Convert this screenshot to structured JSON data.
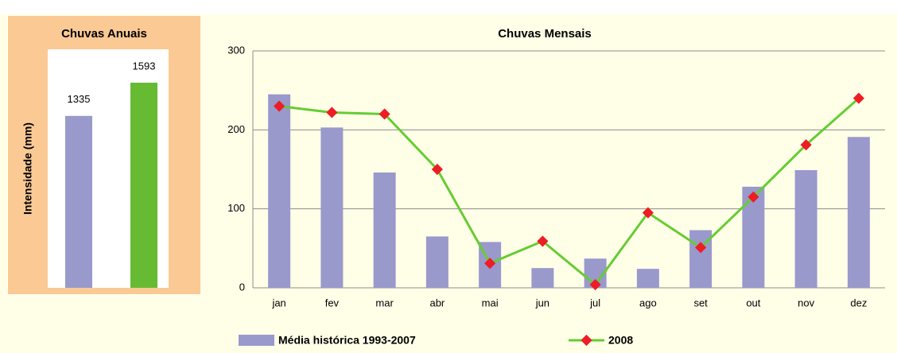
{
  "chart_data": [
    {
      "type": "bar",
      "title": "Chuvas Anuais",
      "y_label": "Intensidade (mm)",
      "values": [
        1335,
        1593
      ],
      "colors": [
        "#9999cc",
        "#66bb33"
      ]
    },
    {
      "type": "bar_line",
      "title": "Chuvas Mensais",
      "categories": [
        "jan",
        "fev",
        "mar",
        "abr",
        "mai",
        "jun",
        "jul",
        "ago",
        "set",
        "out",
        "nov",
        "dez"
      ],
      "ylim": [
        0,
        300
      ],
      "yticks": [
        0,
        100,
        200,
        300
      ],
      "grid": true,
      "legend": "bottom",
      "series": [
        {
          "name": "Média histórica 1993-2007",
          "type": "bar",
          "color": "#9999cc",
          "values": [
            245,
            203,
            146,
            65,
            58,
            25,
            37,
            24,
            73,
            128,
            149,
            191
          ]
        },
        {
          "name": "2008",
          "type": "line",
          "color": "#66cc33",
          "marker_color": "#ee1c24",
          "values": [
            230,
            222,
            220,
            150,
            31,
            59,
            4,
            95,
            51,
            115,
            181,
            240
          ]
        }
      ]
    }
  ]
}
